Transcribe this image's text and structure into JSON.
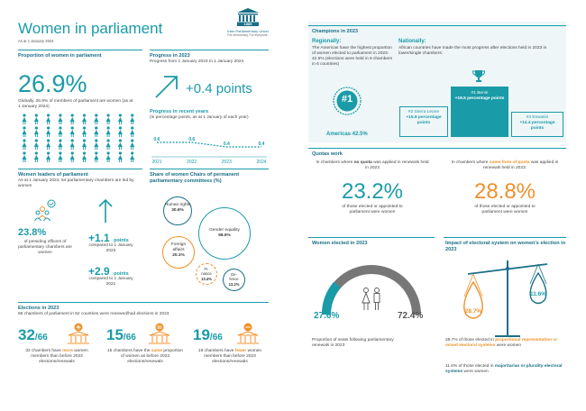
{
  "header": {
    "title": "Women in parliament",
    "date": "As at 1 January 2024",
    "logo_text": "Inter-Parliamentary Union",
    "logo_year": "1889",
    "logo_tagline": "For democracy. For everyone."
  },
  "proportion": {
    "title": "Proportion of women in parliament",
    "value": "26.9%",
    "desc": "Globally, 26.9% of members of parliament are women (as at 1 January 2024)"
  },
  "progress": {
    "title": "Progress in 2023",
    "subtitle": "Progress from 1 January 2023 to 1 January 2024",
    "value": "+0.4 points",
    "recent_title": "Progress in recent years",
    "recent_sub": "(in percentage points, as at 1 January of each year)"
  },
  "chart_data": {
    "type": "line",
    "categories": [
      "2021",
      "2022",
      "2023",
      "2024"
    ],
    "values": [
      0.6,
      0.6,
      0.4,
      0.4
    ],
    "title": "Progress in recent years",
    "xlabel": "",
    "ylabel": ""
  },
  "leaders": {
    "title": "Women leaders of parliament",
    "desc": "As at 1 January 2024, 64 parliamentary chambers are led by women",
    "value": "23.8%",
    "value_desc": "of presiding officers of parliamentary chambers are women",
    "p1_value": "+1.1",
    "p1_unit": "points",
    "p1_desc": "compared to 1 January 2023",
    "p2_value": "+2.9",
    "p2_unit": "points",
    "p2_desc": "compared to 1 January 2021"
  },
  "chairs": {
    "title": "Share of women Chairs of permanent parliamentary committees (%)",
    "bubbles": [
      {
        "label": "Human rights",
        "value": "30.6%"
      },
      {
        "label": "Gender equality",
        "value": "68.5%"
      },
      {
        "label": "Foreign affairs",
        "value": "20.1%"
      },
      {
        "label": "Fi-nance",
        "value": "13.4%"
      },
      {
        "label": "De-fence",
        "value": "13.2%"
      }
    ]
  },
  "elections": {
    "title": "Elections in 2023",
    "desc": "66 chambers of parliament in 52 countries were renewed/had elections in 2023",
    "items": [
      {
        "num": "32",
        "den": "/66",
        "pre": "32 chambers have ",
        "em": "more",
        "post": " women members than before 2023 elections/renewals"
      },
      {
        "num": "15",
        "den": "/66",
        "pre": "15 chambers have the ",
        "em": "same",
        "post": " proportion of women as before 2023 elections/renewals"
      },
      {
        "num": "19",
        "den": "/66",
        "pre": "19 chambers have ",
        "em": "fewer",
        "post": " women members than before 2023 elections/renewals"
      }
    ]
  },
  "champions": {
    "title": "Champions in 2023",
    "regional_title": "Regionally:",
    "regional_desc": "The Americas have the highest proportion of women elected to parliament in 2023: 42.5% (elections were held in 9 chambers in 6 countries)",
    "medal_label": "#1",
    "americas": "Americas 42.5%",
    "national_title": "Nationally:",
    "national_desc": "African countries have made the most progress after elections held in 2023 in lower/single chambers:",
    "podium": [
      {
        "rank": "#2 Sierra Leone",
        "value": "+15.9 percentage points"
      },
      {
        "rank": "#1 Benin",
        "value": "+18.5 percentage points"
      },
      {
        "rank": "#3 Eswatini",
        "value": "+14.4 percentage points"
      }
    ]
  },
  "quotas": {
    "title": "Quotas work",
    "left_pre": "In chambers where ",
    "left_em": "no quota",
    "left_post": " was applied in renewals held in 2023",
    "left_value": "23.2%",
    "left_desc": "of those elected or appointed to parliament were women",
    "right_pre": "In chambers where ",
    "right_em": "some form of quota",
    "right_post": " was applied in renewals held in 2023:",
    "right_value": "28.8%",
    "right_desc": "of those elected or appointed to parliament were women"
  },
  "elected": {
    "title": "Women elected in 2023",
    "women": "27.6%",
    "men": "72.4%",
    "desc": "Proportion of seats following parliamentary renewals in 2023"
  },
  "impact": {
    "title": "Impact of electoral system on women's election in 2023",
    "left_value": "28.7%",
    "right_value": "11.6%",
    "line1_pre": "28.7% of those elected in ",
    "line1_em": "proportional representation or mixed electoral systems",
    "line1_post": " were women",
    "line2_pre": "11.6% of those elected in ",
    "line2_em": "majoritarian or plurality electoral systems",
    "line2_post": " were women"
  },
  "colors": {
    "teal": "#1a9ba8",
    "orange": "#f0902a",
    "navy": "#1a6f88"
  }
}
